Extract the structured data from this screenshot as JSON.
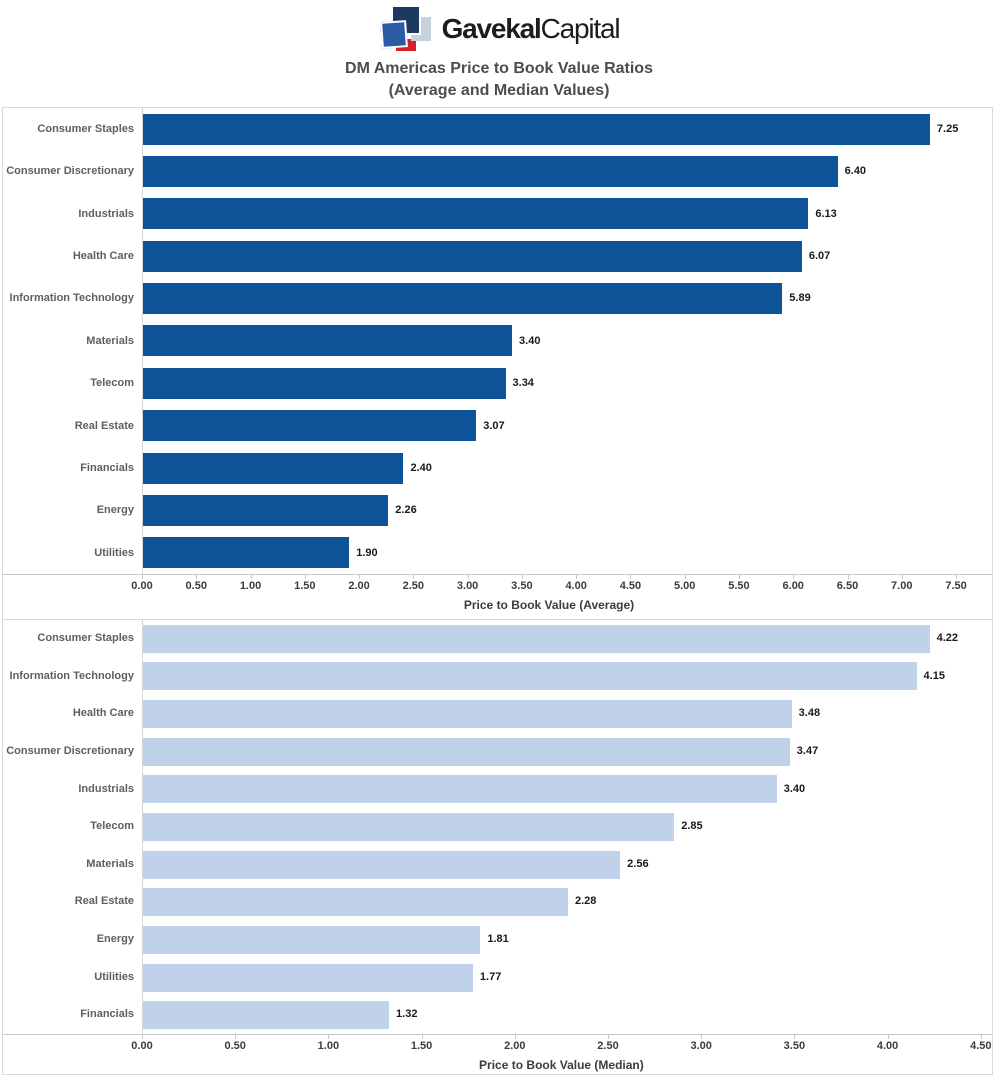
{
  "logo": {
    "brand_bold": "Gavekal",
    "brand_light": "Capital"
  },
  "title": {
    "line1": "DM Americas Price to Book Value Ratios",
    "line2": "(Average and Median Values)"
  },
  "colors": {
    "bar_average": "#0e5397",
    "bar_median": "#bfd2e9",
    "category_label": "#5f5f5f",
    "value_label": "#1a1a1a",
    "tick_label": "#3c3c3c",
    "axis_title": "#3c3c3c",
    "page_title": "#4d4d4d",
    "panel_border": "#d9d9d9",
    "axis_line": "#c9c9c9",
    "logo_navy": "#1c3961",
    "logo_blue": "#2b5ba4",
    "logo_light": "#c8d2dd",
    "logo_red": "#d6202a",
    "logo_text": "#1d1d1b"
  },
  "chart_data": [
    {
      "type": "bar",
      "orientation": "horizontal",
      "xlabel": "Price to Book Value (Average)",
      "categories": [
        "Consumer Staples",
        "Consumer Discretionary",
        "Industrials",
        "Health Care",
        "Information Technology",
        "Materials",
        "Telecom",
        "Real Estate",
        "Financials",
        "Energy",
        "Utilities"
      ],
      "values": [
        7.25,
        6.4,
        6.13,
        6.07,
        5.89,
        3.4,
        3.34,
        3.07,
        2.4,
        2.26,
        1.9
      ],
      "value_labels": [
        "7.25",
        "6.40",
        "6.13",
        "6.07",
        "5.89",
        "3.40",
        "3.34",
        "3.07",
        "2.40",
        "2.26",
        "1.90"
      ],
      "xlim": [
        0,
        7.5
      ],
      "tick_step": 0.5,
      "tick_labels": [
        "0.00",
        "0.50",
        "1.00",
        "1.50",
        "2.00",
        "2.50",
        "3.00",
        "3.50",
        "4.00",
        "4.50",
        "5.00",
        "5.50",
        "6.00",
        "6.50",
        "7.00",
        "7.50"
      ],
      "bar_color": "#0e5397",
      "grid": false,
      "legend": "none"
    },
    {
      "type": "bar",
      "orientation": "horizontal",
      "xlabel": "Price to Book Value (Median)",
      "categories": [
        "Consumer Staples",
        "Information Technology",
        "Health Care",
        "Consumer Discretionary",
        "Industrials",
        "Telecom",
        "Materials",
        "Real Estate",
        "Energy",
        "Utilities",
        "Financials"
      ],
      "values": [
        4.22,
        4.15,
        3.48,
        3.47,
        3.4,
        2.85,
        2.56,
        2.28,
        1.81,
        1.77,
        1.32
      ],
      "value_labels": [
        "4.22",
        "4.15",
        "3.48",
        "3.47",
        "3.40",
        "2.85",
        "2.56",
        "2.28",
        "1.81",
        "1.77",
        "1.32"
      ],
      "xlim": [
        0,
        4.5
      ],
      "tick_step": 0.5,
      "tick_labels": [
        "0.00",
        "0.50",
        "1.00",
        "1.50",
        "2.00",
        "2.50",
        "3.00",
        "3.50",
        "4.00",
        "4.50"
      ],
      "bar_color": "#bfd2e9",
      "grid": false,
      "legend": "none"
    }
  ]
}
